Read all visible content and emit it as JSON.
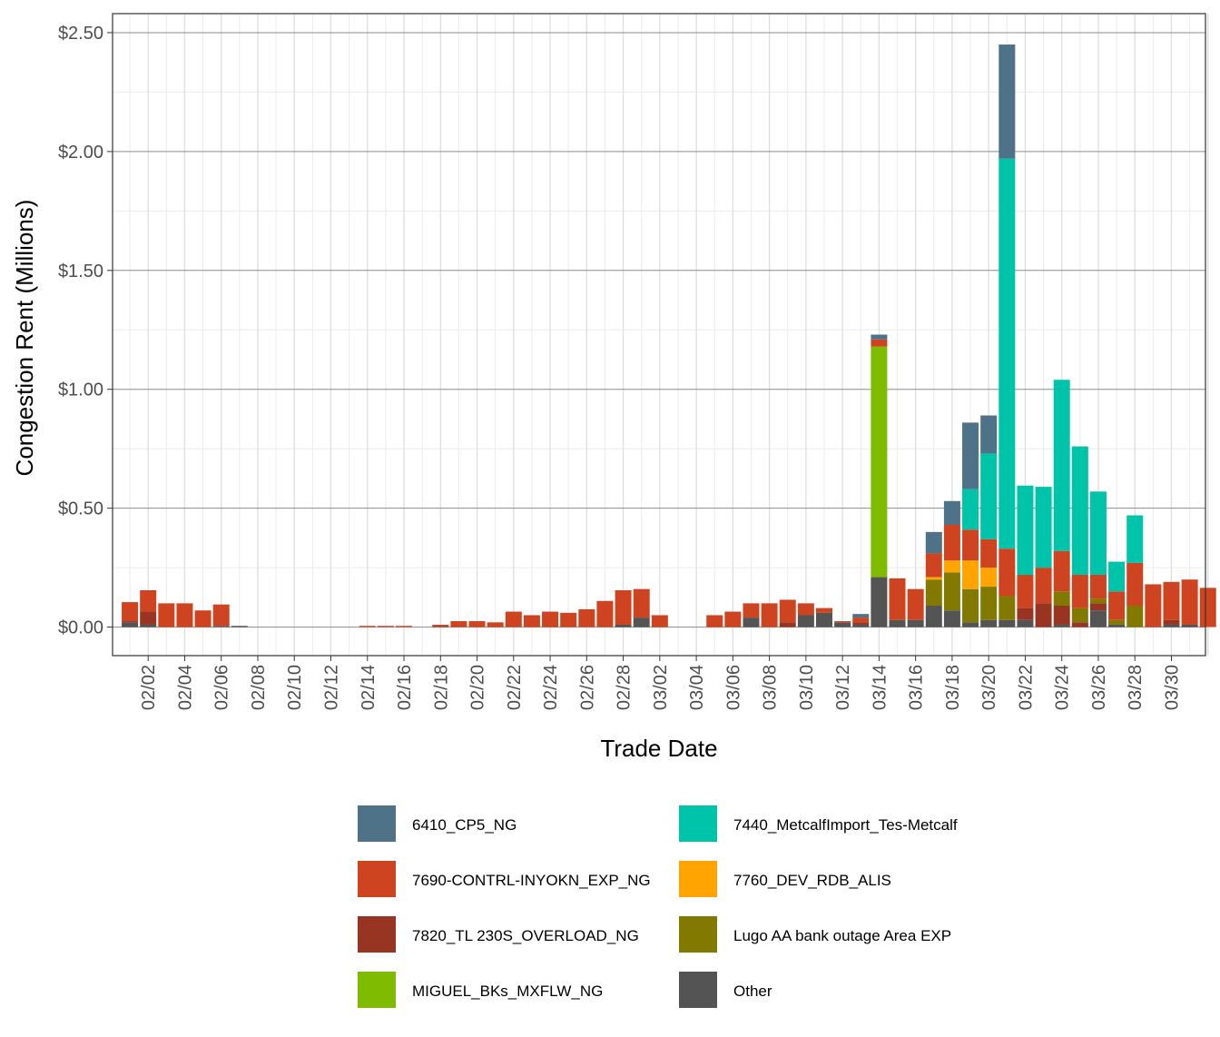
{
  "chart_data": {
    "type": "bar",
    "stacked": true,
    "xlabel": "Trade Date",
    "ylabel": "Congestion Rent (Millions)",
    "ylim": [
      -0.12,
      2.58
    ],
    "y_ticks": [
      0,
      0.5,
      1,
      1.5,
      2,
      2.5
    ],
    "y_tick_labels": [
      "$0.00",
      "$0.50",
      "$1.00",
      "$1.50",
      "$2.00",
      "$2.50"
    ],
    "grid": true,
    "legend_position": "bottom",
    "categories": [
      "02/01",
      "02/02",
      "02/03",
      "02/04",
      "02/05",
      "02/06",
      "02/07",
      "02/08",
      "02/09",
      "02/10",
      "02/11",
      "02/12",
      "02/13",
      "02/14",
      "02/15",
      "02/16",
      "02/17",
      "02/18",
      "02/19",
      "02/20",
      "02/21",
      "02/22",
      "02/23",
      "02/24",
      "02/25",
      "02/26",
      "02/27",
      "02/28",
      "02/29",
      "03/01",
      "03/02",
      "03/03",
      "03/04",
      "03/05",
      "03/06",
      "03/07",
      "03/08",
      "03/09",
      "03/10",
      "03/11",
      "03/12",
      "03/13",
      "03/14",
      "03/15",
      "03/16",
      "03/17",
      "03/18",
      "03/19",
      "03/20",
      "03/21",
      "03/22",
      "03/23",
      "03/24",
      "03/25",
      "03/26",
      "03/27",
      "03/28",
      "03/29",
      "03/30",
      "03/31"
    ],
    "x_tick_labels": [
      "02/02",
      "02/04",
      "02/06",
      "02/08",
      "02/10",
      "02/12",
      "02/14",
      "02/16",
      "02/18",
      "02/20",
      "02/22",
      "02/24",
      "02/26",
      "02/28",
      "03/02",
      "03/04",
      "03/06",
      "03/08",
      "03/10",
      "03/12",
      "03/14",
      "03/16",
      "03/18",
      "03/20",
      "03/22",
      "03/24",
      "03/26",
      "03/28",
      "03/30"
    ],
    "series": [
      {
        "name": "Other",
        "color": "#545454",
        "values": [
          0.02,
          0.01,
          0,
          0,
          0,
          0.005,
          0.005,
          0,
          0,
          0,
          0,
          0,
          0,
          0,
          0,
          0,
          0,
          0,
          0,
          0,
          0,
          0,
          0,
          0,
          0,
          0,
          0,
          0.01,
          0.04,
          0,
          0,
          0,
          0,
          0,
          0.04,
          0,
          0,
          0.05,
          0.06,
          0.02,
          0.01,
          0.21,
          0.03,
          0.03,
          0.09,
          0.07,
          0.02,
          0.03,
          0.03,
          0.03,
          0,
          0.01,
          0,
          0.07,
          0.01,
          0,
          0,
          0.01,
          0.01,
          0
        ]
      },
      {
        "name": "7820_TL 230S_OVERLOAD_NG",
        "color": "#973522",
        "values": [
          0.005,
          0.055,
          0,
          0,
          0,
          0,
          0,
          0,
          0,
          0,
          0,
          0,
          0,
          0,
          0,
          0,
          0,
          0.005,
          0,
          0,
          0,
          0,
          0,
          0,
          0,
          0,
          0,
          0,
          0,
          0,
          0,
          0,
          0,
          0,
          0,
          0,
          0.02,
          0,
          0,
          0,
          0.01,
          0,
          0,
          0,
          0,
          0,
          0,
          0,
          0,
          0.05,
          0.1,
          0.08,
          0.02,
          0.03,
          0,
          0,
          0,
          0.02,
          0,
          0
        ]
      },
      {
        "name": "Lugo AA bank outage  Area EXP",
        "color": "#827a00",
        "values": [
          0,
          0,
          0,
          0,
          0,
          0,
          0,
          0,
          0,
          0,
          0,
          0,
          0,
          0,
          0,
          0,
          0,
          0,
          0,
          0,
          0,
          0,
          0,
          0,
          0,
          0,
          0,
          0,
          0,
          0,
          0,
          0,
          0,
          0,
          0,
          0,
          0,
          0,
          0,
          0,
          0,
          0,
          0,
          0,
          0.11,
          0.16,
          0.14,
          0.14,
          0.1,
          0,
          0,
          0.06,
          0.06,
          0.02,
          0.02,
          0.09,
          0,
          0,
          0,
          0
        ]
      },
      {
        "name": "7760_DEV_RDB_ALIS",
        "color": "#ffa400",
        "values": [
          0,
          0,
          0,
          0,
          0,
          0,
          0,
          0,
          0,
          0,
          0,
          0,
          0,
          0,
          0,
          0,
          0,
          0,
          0,
          0,
          0,
          0,
          0,
          0,
          0,
          0,
          0,
          0,
          0,
          0,
          0,
          0,
          0,
          0,
          0,
          0,
          0,
          0,
          0,
          0,
          0,
          0,
          0,
          0,
          0.01,
          0.05,
          0.12,
          0.08,
          0,
          0,
          0,
          0,
          0,
          0,
          0,
          0,
          0,
          0,
          0,
          0
        ]
      },
      {
        "name": "MIGUEL_BKs_MXFLW_NG",
        "color": "#7fbb00",
        "values": [
          0,
          0,
          0,
          0,
          0,
          0,
          0,
          0,
          0,
          0,
          0,
          0,
          0,
          0,
          0,
          0,
          0,
          0,
          0,
          0,
          0,
          0,
          0,
          0,
          0,
          0,
          0,
          0,
          0,
          0,
          0,
          0,
          0,
          0,
          0,
          0,
          0,
          0,
          0,
          0,
          0,
          0.97,
          0,
          0,
          0,
          0,
          0,
          0,
          0,
          0,
          0,
          0,
          0,
          0,
          0,
          0,
          0,
          0,
          0,
          0
        ]
      },
      {
        "name": "7690-CONTRL-INYOKN_EXP_NG",
        "color": "#cf4420",
        "values": [
          0.08,
          0.09,
          0.1,
          0.1,
          0.07,
          0.09,
          0,
          0,
          0,
          0,
          0,
          0,
          0,
          0.005,
          0.005,
          0.005,
          0,
          0.005,
          0.025,
          0.025,
          0.02,
          0.065,
          0.05,
          0.065,
          0.06,
          0.075,
          0.11,
          0.145,
          0.12,
          0.05,
          0,
          0,
          0.05,
          0.065,
          0.06,
          0.1,
          0.095,
          0.05,
          0.02,
          0.005,
          0.02,
          0.03,
          0.175,
          0.13,
          0.1,
          0.15,
          0.13,
          0.12,
          0.2,
          0.14,
          0.15,
          0.17,
          0.14,
          0.1,
          0.12,
          0.18,
          0.18,
          0.16,
          0.19,
          0.165
        ]
      },
      {
        "name": "7440_MetcalfImport_Tes-Metcalf",
        "color": "#00c4aa",
        "values": [
          0,
          0,
          0,
          0,
          0,
          0,
          0,
          0,
          0,
          0,
          0,
          0,
          0,
          0,
          0,
          0,
          0,
          0,
          0,
          0,
          0,
          0,
          0,
          0,
          0,
          0,
          0,
          0,
          0,
          0,
          0,
          0,
          0,
          0,
          0,
          0,
          0,
          0,
          0,
          0,
          0,
          0,
          0,
          0,
          0,
          0,
          0.17,
          0.36,
          1.64,
          0.375,
          0.34,
          0.72,
          0.54,
          0.35,
          0.125,
          0.2,
          0,
          0,
          0,
          0
        ]
      },
      {
        "name": "6410_CP5_NG",
        "color": "#4e7288",
        "values": [
          0,
          0,
          0,
          0,
          0,
          0,
          0,
          0,
          0,
          0,
          0,
          0,
          0,
          0,
          0,
          0,
          0,
          0,
          0,
          0,
          0,
          0,
          0,
          0,
          0,
          0,
          0,
          0,
          0,
          0,
          0,
          0,
          0,
          0,
          0,
          0,
          0,
          0,
          0,
          0,
          0.015,
          0.02,
          0,
          0,
          0.09,
          0.1,
          0.28,
          0.16,
          0.48,
          0,
          0,
          0,
          0,
          0,
          0,
          0,
          0,
          0,
          0,
          0
        ]
      }
    ],
    "legend_order": [
      "6410_CP5_NG",
      "7440_MetcalfImport_Tes-Metcalf",
      "7690-CONTRL-INYOKN_EXP_NG",
      "7760_DEV_RDB_ALIS",
      "7820_TL 230S_OVERLOAD_NG",
      "Lugo AA bank outage  Area EXP",
      "MIGUEL_BKs_MXFLW_NG",
      "Other"
    ]
  }
}
